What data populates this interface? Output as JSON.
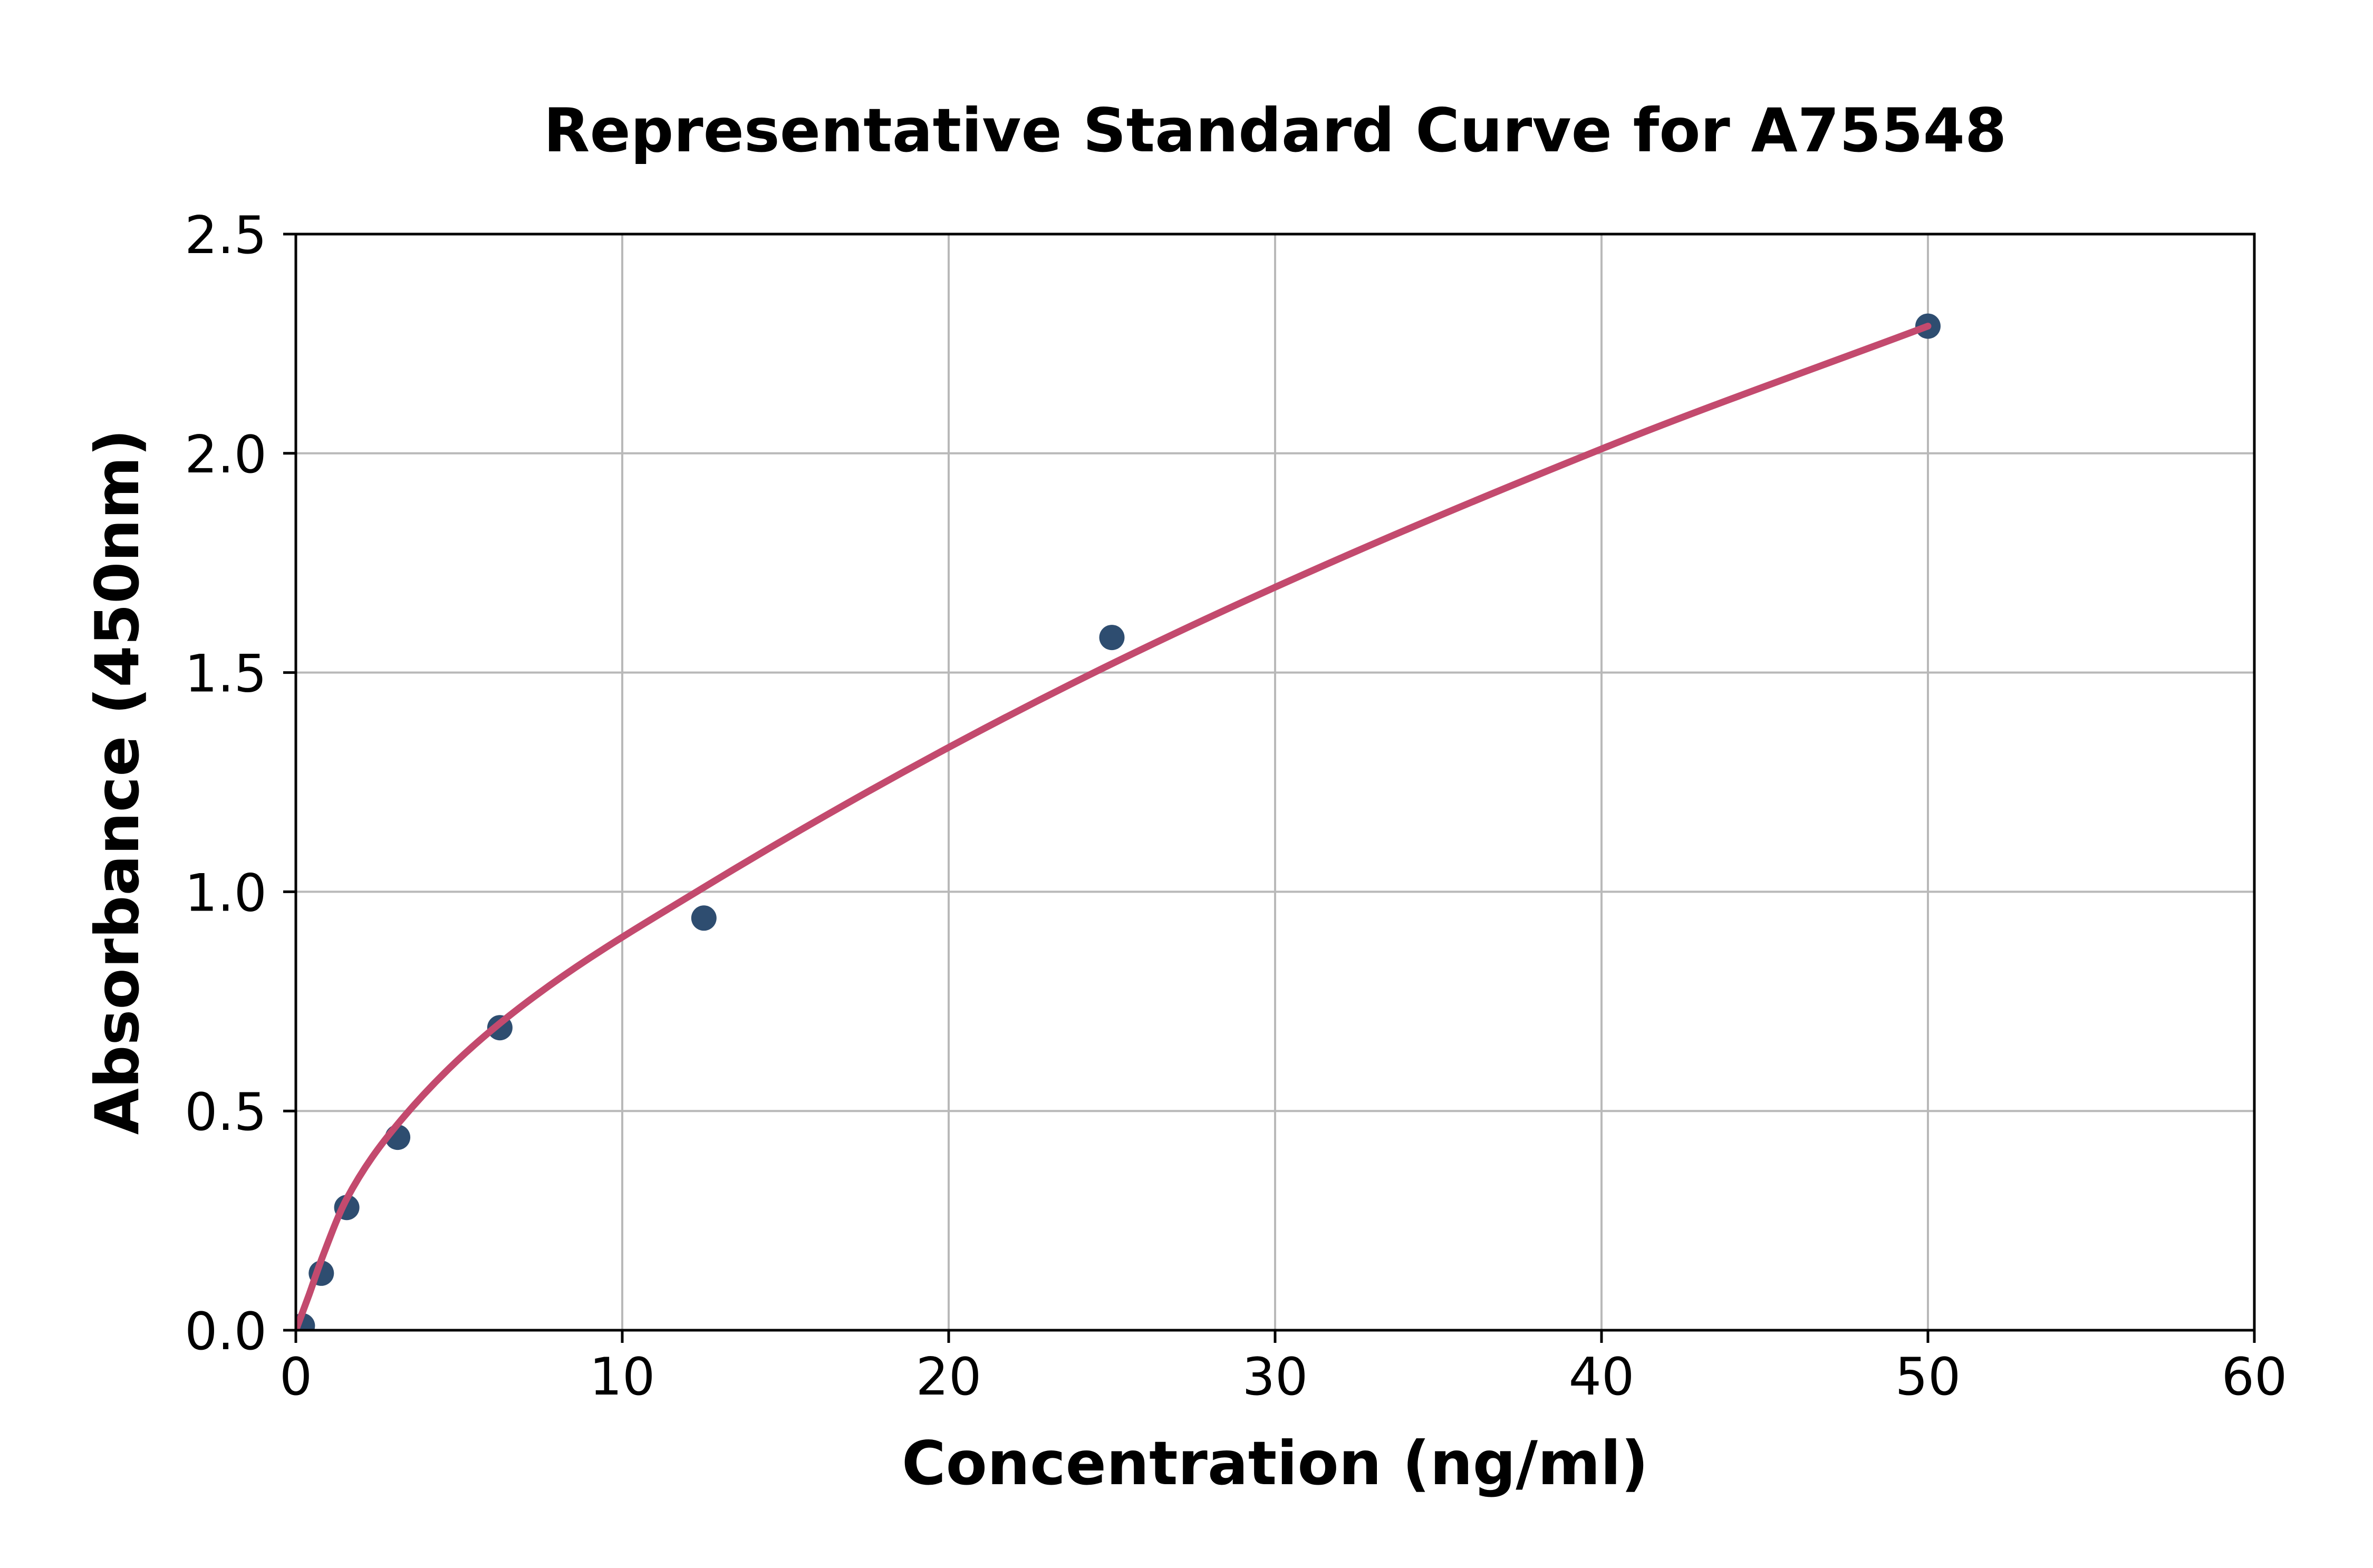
{
  "title": "Representative Standard Curve for A75548",
  "chart_data": {
    "type": "scatter",
    "title": "Representative Standard Curve for A75548",
    "xlabel": "Concentration (ng/ml)",
    "ylabel": "Absorbance (450nm)",
    "xlim": [
      0,
      60
    ],
    "ylim": [
      0,
      2.5
    ],
    "xticks": [
      0,
      10,
      20,
      30,
      40,
      50,
      60
    ],
    "xtick_labels": [
      "0",
      "10",
      "20",
      "30",
      "40",
      "50",
      "60"
    ],
    "yticks": [
      0,
      0.5,
      1.0,
      1.5,
      2.0,
      2.5
    ],
    "ytick_labels": [
      "0.0",
      "0.5",
      "1.0",
      "1.5",
      "2.0",
      "2.5"
    ],
    "grid": true,
    "legend": false,
    "series": [
      {
        "name": "standard-points",
        "type": "scatter",
        "color": "#2e4d70",
        "marker_radius": 24,
        "x": [
          0.2,
          0.78,
          1.56,
          3.12,
          6.25,
          12.5,
          25,
          50
        ],
        "y": [
          0.01,
          0.13,
          0.28,
          0.44,
          0.69,
          0.94,
          1.58,
          2.29
        ]
      },
      {
        "name": "fit-curve",
        "type": "line",
        "color": "#c34a6e",
        "width": 13,
        "x": [
          0,
          0.4,
          0.78,
          1.56,
          3.12,
          6.25,
          12.5,
          25,
          40,
          50
        ],
        "y": [
          0,
          0.08,
          0.16,
          0.3,
          0.47,
          0.7,
          1.01,
          1.52,
          2.01,
          2.29
        ]
      }
    ],
    "colors": {
      "background": "#ffffff",
      "spine": "#000000",
      "grid": "#b9b9b9",
      "tick": "#000000",
      "point": "#2e4d70",
      "curve": "#c34a6e"
    }
  }
}
